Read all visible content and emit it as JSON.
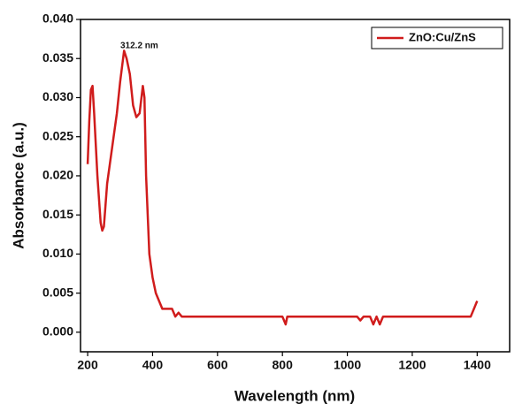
{
  "chart_data": {
    "type": "line",
    "x_label": "Wavelength (nm)",
    "y_label": "Absorbance (a.u.)",
    "annotation": "312.2 nm",
    "xlim": [
      178,
      1500
    ],
    "ylim": [
      -0.0025,
      0.04
    ],
    "xticks": [
      200,
      400,
      600,
      800,
      1000,
      1200,
      1400
    ],
    "yticks": [
      {
        "value": 0,
        "label": "0.000"
      },
      {
        "value": 0.005,
        "label": "0.005"
      },
      {
        "value": 0.01,
        "label": "0.010"
      },
      {
        "value": 0.015,
        "label": "0.015"
      },
      {
        "value": 0.02,
        "label": "0.020"
      },
      {
        "value": 0.025,
        "label": "0.025"
      },
      {
        "value": 0.03,
        "label": "0.030"
      },
      {
        "value": 0.035,
        "label": "0.035"
      },
      {
        "value": 0.04,
        "label": "0.040"
      }
    ],
    "legend_position": "upper right",
    "x": [
      200,
      205,
      210,
      215,
      220,
      230,
      240,
      245,
      250,
      260,
      270,
      280,
      290,
      300,
      312.2,
      320,
      330,
      340,
      350,
      360,
      370,
      375,
      380,
      390,
      400,
      410,
      420,
      430,
      460,
      470,
      480,
      490,
      800,
      810,
      815,
      1030,
      1040,
      1050,
      1070,
      1080,
      1090,
      1100,
      1110,
      1380,
      1390,
      1400
    ],
    "series": [
      {
        "name": "ZnO:Cu/ZnS",
        "color": "#d01c1c",
        "values": [
          0.0215,
          0.027,
          0.031,
          0.0315,
          0.028,
          0.02,
          0.014,
          0.013,
          0.0135,
          0.019,
          0.022,
          0.025,
          0.028,
          0.032,
          0.036,
          0.035,
          0.033,
          0.029,
          0.0275,
          0.028,
          0.0315,
          0.03,
          0.02,
          0.01,
          0.007,
          0.005,
          0.004,
          0.003,
          0.003,
          0.002,
          0.0025,
          0.002,
          0.002,
          0.001,
          0.002,
          0.002,
          0.0015,
          0.002,
          0.002,
          0.001,
          0.002,
          0.001,
          0.002,
          0.002,
          0.003,
          0.004
        ]
      }
    ]
  }
}
